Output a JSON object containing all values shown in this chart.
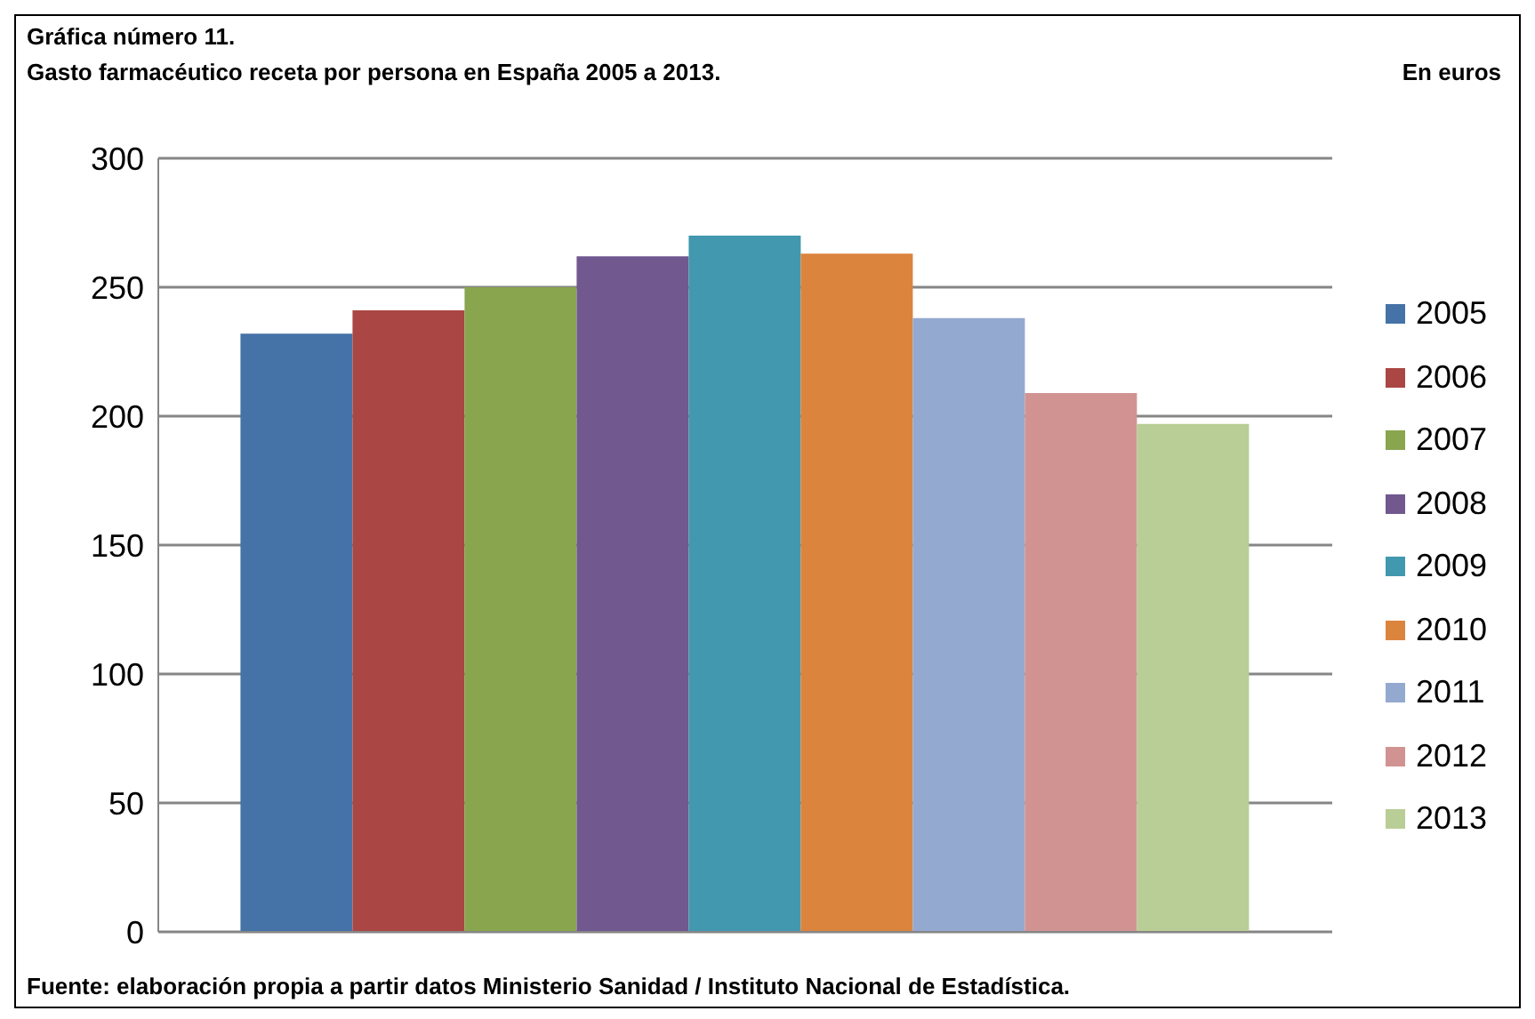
{
  "chart_data": {
    "type": "bar",
    "title": "Gráfica número 11.",
    "subtitle": "Gasto farmacéutico receta por persona en España 2005 a 2013.",
    "annotations": [
      "En euros",
      "Fuente: elaboración propia a partir datos Ministerio Sanidad / Instituto Nacional de Estadística."
    ],
    "categories": [
      null
    ],
    "series": [
      {
        "name": "2005",
        "color": "#4572a7",
        "values": [
          232
        ]
      },
      {
        "name": "2006",
        "color": "#aa4643",
        "values": [
          241
        ]
      },
      {
        "name": "2007",
        "color": "#89a54e",
        "values": [
          250
        ]
      },
      {
        "name": "2008",
        "color": "#71588f",
        "values": [
          262
        ]
      },
      {
        "name": "2009",
        "color": "#4198af",
        "values": [
          270
        ]
      },
      {
        "name": "2010",
        "color": "#db843d",
        "values": [
          263
        ]
      },
      {
        "name": "2011",
        "color": "#93a9cf",
        "values": [
          238
        ]
      },
      {
        "name": "2012",
        "color": "#d19392",
        "values": [
          209
        ]
      },
      {
        "name": "2013",
        "color": "#b9cd96",
        "values": [
          197
        ]
      }
    ],
    "ylim": [
      0,
      300
    ],
    "yticks": [
      0,
      50,
      100,
      150,
      200,
      250,
      300
    ],
    "grid": "y",
    "legend": "right"
  }
}
